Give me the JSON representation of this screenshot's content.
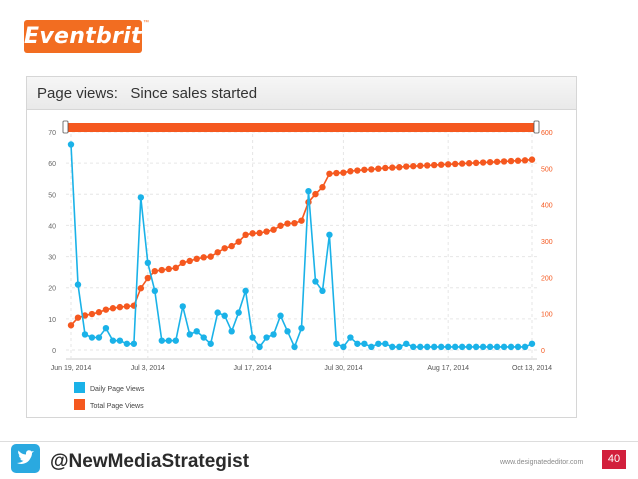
{
  "brand": {
    "logo_text": "Eventbrite",
    "tm": "™"
  },
  "panel": {
    "title": "Page views:   Since sales started"
  },
  "footer": {
    "handle": "@NewMediaStrategist",
    "website": "www.designatededitor.com",
    "page_number": "40"
  },
  "colors": {
    "daily": "#1ab2e8",
    "total": "#f5581f",
    "grid": "#e6e6e6",
    "brand": "#f26d21",
    "twitter": "#2aa9e0",
    "page_badge": "#d21f3c"
  },
  "chart_data": {
    "type": "line",
    "title": "Page views: Since sales started",
    "x_tick_labels": [
      "Jun 19, 2014",
      "Jul 3, 2014",
      "Jul 17, 2014",
      "Jul 30, 2014",
      "Aug 17, 2014",
      "Oct 13, 2014"
    ],
    "x_tick_index": [
      0,
      11,
      26,
      39,
      54,
      66
    ],
    "y_left": {
      "ticks": [
        0,
        10,
        20,
        30,
        40,
        50,
        60,
        70
      ],
      "range": [
        0,
        70
      ]
    },
    "y_right": {
      "ticks": [
        0,
        100,
        200,
        300,
        400,
        500,
        600
      ],
      "range": [
        0,
        600
      ]
    },
    "legend": [
      "Daily Page Views",
      "Total Page Views"
    ],
    "series": [
      {
        "name": "Daily Page Views",
        "axis": "left",
        "values": [
          66,
          21,
          5,
          4,
          4,
          7,
          3,
          3,
          2,
          2,
          49,
          28,
          19,
          3,
          3,
          3,
          14,
          5,
          6,
          4,
          2,
          12,
          11,
          6,
          12,
          19,
          4,
          1,
          4,
          5,
          11,
          6,
          1,
          7,
          51,
          22,
          19,
          37,
          2,
          1,
          4,
          2,
          2,
          1,
          2,
          2,
          1,
          1,
          2,
          1,
          1,
          1,
          1,
          1,
          1,
          1,
          1,
          1,
          1,
          1,
          1,
          1,
          1,
          1,
          1,
          1,
          2
        ]
      },
      {
        "name": "Total Page Views",
        "axis": "right",
        "values": [
          68,
          89,
          95,
          99,
          104,
          111,
          115,
          118,
          120,
          122,
          170,
          198,
          217,
          220,
          223,
          226,
          240,
          245,
          251,
          255,
          257,
          269,
          280,
          286,
          298,
          317,
          321,
          322,
          326,
          331,
          342,
          348,
          349,
          356,
          407,
          429,
          448,
          485,
          487,
          488,
          492,
          494,
          496,
          497,
          499,
          501,
          502,
          503,
          505,
          506,
          507,
          508,
          509,
          510,
          511,
          512,
          513,
          514,
          515,
          516,
          517,
          518,
          519,
          520,
          521,
          522,
          524
        ]
      }
    ]
  }
}
